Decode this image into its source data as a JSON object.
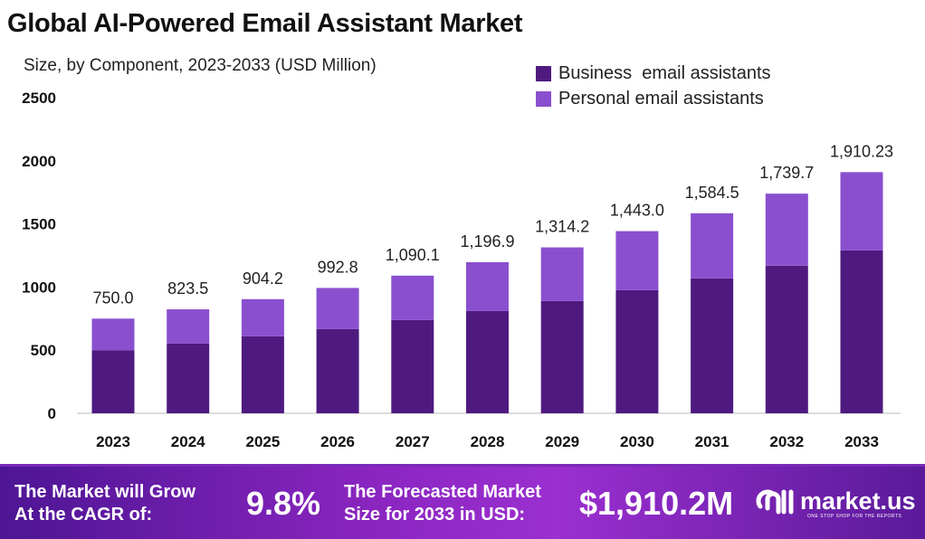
{
  "chart_data": {
    "type": "bar",
    "stacked": true,
    "title": "Global AI-Powered Email Assistant Market",
    "subtitle": "Size, by Component, 2023-2033 (USD Million)",
    "categories": [
      "2023",
      "2024",
      "2025",
      "2026",
      "2027",
      "2028",
      "2029",
      "2030",
      "2031",
      "2032",
      "2033"
    ],
    "series": [
      {
        "name": "Business  email assistants",
        "color": "#4f1a80",
        "values": [
          500,
          552,
          610,
          667,
          739,
          810,
          889,
          975,
          1069,
          1169,
          1291
        ]
      },
      {
        "name": "Personal email assistants",
        "color": "#8a4fcf",
        "values": [
          250,
          271.5,
          294.2,
          325.8,
          351.1,
          386.9,
          425.2,
          468,
          515.5,
          570.7,
          619.23
        ]
      }
    ],
    "totals_labels": [
      "750.0",
      "823.5",
      "904.2",
      "992.8",
      "1,090.1",
      "1,196.9",
      "1,314.2",
      "1,443.0",
      "1,584.5",
      "1,739.7",
      "1,910.23"
    ],
    "totals": [
      750.0,
      823.5,
      904.2,
      992.8,
      1090.1,
      1196.9,
      1314.2,
      1443.0,
      1584.5,
      1739.7,
      1910.23
    ],
    "yticks": [
      "0",
      "500",
      "1000",
      "1500",
      "2000",
      "2500"
    ],
    "ylim": [
      0,
      2500
    ],
    "legend_position": "top-right",
    "grid": false
  },
  "footer": {
    "cagr_label_1": "The Market will Grow",
    "cagr_label_2": "At the CAGR of:",
    "cagr_value": "9.8%",
    "forecast_label_1": "The Forecasted Market",
    "forecast_label_2": "Size for 2033 in USD:",
    "forecast_value": "$1,910.2M",
    "brand": "market.us",
    "tagline": "ONE STOP SHOP FOR THE REPORTS"
  }
}
